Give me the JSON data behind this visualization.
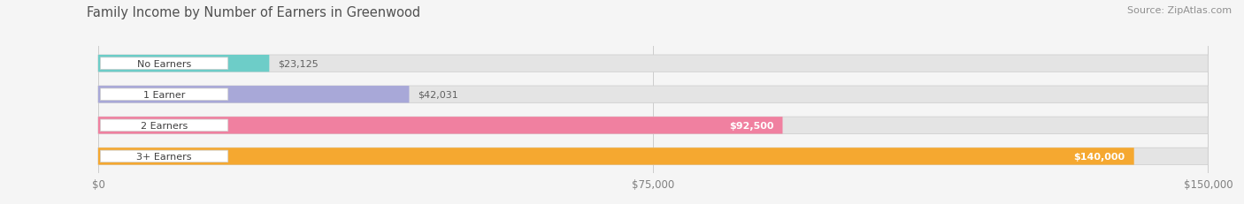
{
  "title": "Family Income by Number of Earners in Greenwood",
  "source": "Source: ZipAtlas.com",
  "categories": [
    "No Earners",
    "1 Earner",
    "2 Earners",
    "3+ Earners"
  ],
  "values": [
    23125,
    42031,
    92500,
    140000
  ],
  "bar_colors": [
    "#6dcdc8",
    "#a8a8d8",
    "#f080a0",
    "#f5a830"
  ],
  "value_labels": [
    "$23,125",
    "$42,031",
    "$92,500",
    "$140,000"
  ],
  "xmax": 150000,
  "x_ticks": [
    0,
    75000,
    150000
  ],
  "x_tick_labels": [
    "$0",
    "$75,000",
    "$150,000"
  ],
  "background_color": "#f5f5f5",
  "bar_bg_color": "#e4e4e4",
  "title_color": "#505050",
  "source_color": "#909090",
  "value_label_dark": "#606060",
  "value_label_white": "#ffffff"
}
